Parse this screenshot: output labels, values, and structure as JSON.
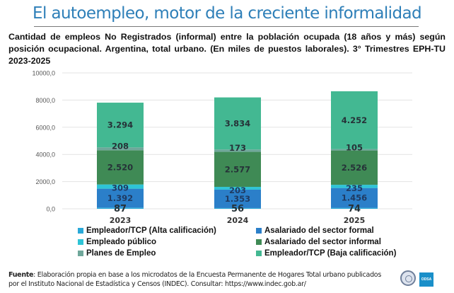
{
  "header": {
    "title": "El autoempleo, motor de la creciente informalidad",
    "subtitle": "Cantidad de empleos No Registrados (informal) entre la población ocupada (18 años y más) según posición ocupacional. Argentina, total urbano. (En miles de puestos laborales). 3° Trimestres EPH-TU 2023-2025"
  },
  "chart_data": {
    "type": "bar",
    "stacked": true,
    "title": "Cantidad de empleos No Registrados (informal) entre la población ocupada (18 años y más) según posición ocupacional. Argentina, total urbano. (En miles de puestos laborales). 3° Trimestres EPH-TU 2023-2025",
    "xlabel": "",
    "ylabel": "",
    "categories": [
      "2023",
      "2024",
      "2025"
    ],
    "ylim": [
      0,
      10000
    ],
    "yticks": [
      0,
      2000,
      4000,
      6000,
      8000,
      10000
    ],
    "ytick_labels": [
      "0,0",
      "2000,0",
      "4000,0",
      "6000,0",
      "8000,0",
      "10000,0"
    ],
    "grid": true,
    "legend_position": "bottom",
    "series": [
      {
        "name": "Empleador/TCP (Alta calificación)",
        "color": "#29a9d8",
        "values": [
          87,
          56,
          74
        ],
        "labels": [
          "87",
          "56",
          "74"
        ]
      },
      {
        "name": "Asalariado del sector formal",
        "color": "#2b7fc9",
        "values": [
          1392,
          1353,
          1456
        ],
        "labels": [
          "1.392",
          "1.353",
          "1.456"
        ]
      },
      {
        "name": "Empleado público",
        "color": "#2ec4d6",
        "values": [
          309,
          203,
          235
        ],
        "labels": [
          "309",
          "203",
          "235"
        ]
      },
      {
        "name": "Asalariado del sector informal",
        "color": "#3f8a55",
        "values": [
          2520,
          2577,
          2526
        ],
        "labels": [
          "2.520",
          "2.577",
          "2.526"
        ]
      },
      {
        "name": "Planes de Empleo",
        "color": "#6fa79a",
        "values": [
          208,
          173,
          105
        ],
        "labels": [
          "208",
          "173",
          "105"
        ]
      },
      {
        "name": "Empleador/TCP (Baja calificación)",
        "color": "#43b892",
        "values": [
          3294,
          3834,
          4252
        ],
        "labels": [
          "3.294",
          "3.834",
          "4.252"
        ]
      }
    ]
  },
  "legend": [
    {
      "label": "Empleador/TCP (Alta calificación)",
      "color": "#29a9d8"
    },
    {
      "label": "Asalariado del sector formal",
      "color": "#2b7fc9"
    },
    {
      "label": "Empleado público",
      "color": "#2ec4d6"
    },
    {
      "label": "Asalariado del sector informal",
      "color": "#3f8a55"
    },
    {
      "label": "Planes de Empleo",
      "color": "#6fa79a"
    },
    {
      "label": "Empleador/TCP (Baja calificación)",
      "color": "#43b892"
    }
  ],
  "footer": {
    "source_label": "Fuente",
    "source_text": ": Elaboración propia en base a los microdatos de la Encuesta Permanente de Hogares Total urbano publicados por el Instituto Nacional de Estadística y Censos (INDEC). Consultar: https://www.indec.gob.ar/",
    "logo2_text": "ODSA"
  }
}
